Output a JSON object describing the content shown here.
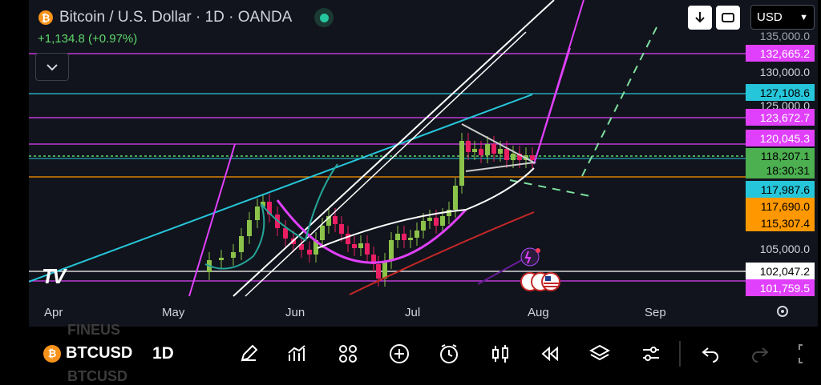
{
  "header": {
    "coin_glyph": "₿",
    "title": "Bitcoin / U.S. Dollar · 1D · OANDA",
    "change": "+1,134.8 (+0.97%)",
    "currency": "USD",
    "logo": "TV"
  },
  "price_scale": {
    "top_partial": "135,000.0",
    "ticks": [
      {
        "label": "130,000.0"
      },
      {
        "label": "125,000.0"
      },
      {
        "label": "105,000.0"
      }
    ],
    "tags": [
      {
        "label": "132,665.2",
        "bg": "#e040fb",
        "fg": "#ffffff"
      },
      {
        "label": "127,108.6",
        "bg": "#26c6da",
        "fg": "#000000"
      },
      {
        "label": "123,672.7",
        "bg": "#e040fb",
        "fg": "#ffffff"
      },
      {
        "label": "120,045.3",
        "bg": "#e040fb",
        "fg": "#ffffff"
      },
      {
        "label": "117,987.6",
        "bg": "#26c6da",
        "fg": "#000000"
      },
      {
        "label": "117,690.0",
        "bg": "#ff9800",
        "fg": "#000000"
      },
      {
        "label": "115,307.4",
        "bg": "#ff9800",
        "fg": "#000000"
      },
      {
        "label": "102,047.2",
        "bg": "#ffffff",
        "fg": "#000000"
      },
      {
        "label": "101,759.5",
        "bg": "#e040fb",
        "fg": "#ffffff"
      }
    ],
    "last_price": {
      "label": "118,207.1",
      "countdown": "18:30:31",
      "bg": "#4caf50",
      "fg": "#000000"
    }
  },
  "time_axis": [
    "Apr",
    "May",
    "Jun",
    "Jul",
    "Aug",
    "Sep"
  ],
  "toolbar": {
    "symbol": "BTCUSD",
    "timeframe": "1D",
    "ghost_top": "FINEUS",
    "ghost_bottom": "BTCUSD",
    "icons": [
      "draw-icon",
      "indicators-icon",
      "templates-icon",
      "add-icon",
      "alert-icon",
      "chart-type-icon",
      "replay-icon",
      "layers-icon",
      "settings-icon",
      "undo-icon",
      "redo-icon"
    ]
  },
  "colors": {
    "up": "#8bc34a",
    "down": "#e91e63",
    "magenta": "#e040fb",
    "cyan": "#26c6da",
    "orange": "#ff9800",
    "green": "#5fd86b"
  }
}
